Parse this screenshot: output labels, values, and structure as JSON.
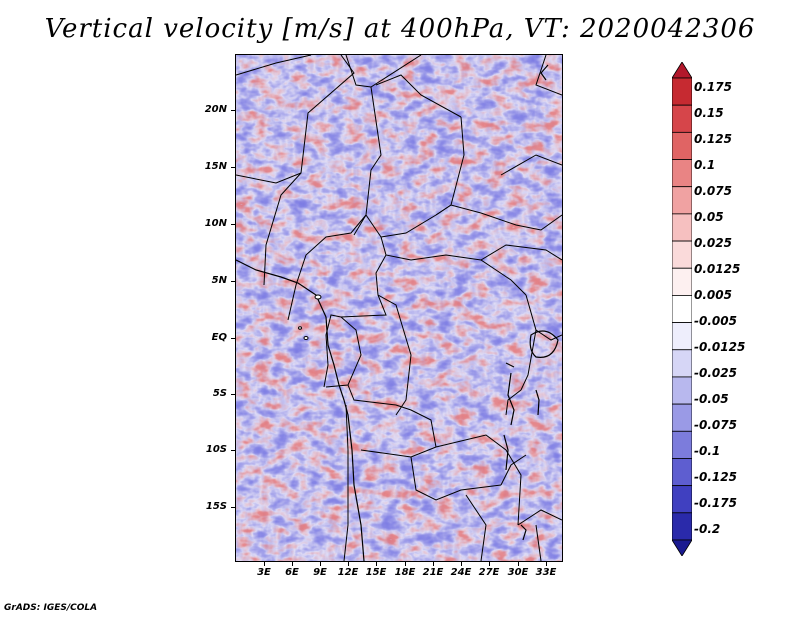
{
  "title": "Vertical velocity [m/s] at 400hPa, VT: 2020042306",
  "credit": "GrADS: IGES/COLA",
  "map": {
    "region": "Central and West Africa",
    "variable": "Vertical velocity",
    "units": "m/s",
    "level": "400hPa",
    "valid_time": "2020042306",
    "lat_labels": [
      "20N",
      "15N",
      "10N",
      "5N",
      "EQ",
      "5S",
      "10S",
      "15S"
    ],
    "lon_labels": [
      "3E",
      "6E",
      "9E",
      "12E",
      "15E",
      "18E",
      "21E",
      "24E",
      "27E",
      "30E",
      "33E"
    ]
  },
  "colorbar": {
    "labels": [
      "0.175",
      "0.15",
      "0.125",
      "0.1",
      "0.075",
      "0.05",
      "0.025",
      "0.0125",
      "0.005",
      "-0.005",
      "-0.0125",
      "-0.025",
      "-0.05",
      "-0.075",
      "-0.1",
      "-0.125",
      "-0.175",
      "-0.2"
    ],
    "colors": [
      "#b2182b",
      "#c62a31",
      "#d6454a",
      "#e06464",
      "#e98484",
      "#f0a2a2",
      "#f6c0c0",
      "#fadada",
      "#fdf0f0",
      "#ffffff",
      "#eeeefc",
      "#d6d6f6",
      "#b8b8ee",
      "#9a9ae6",
      "#7c7cdc",
      "#5e5ed0",
      "#4040c0",
      "#2a2aaa",
      "#1a1a90"
    ]
  }
}
